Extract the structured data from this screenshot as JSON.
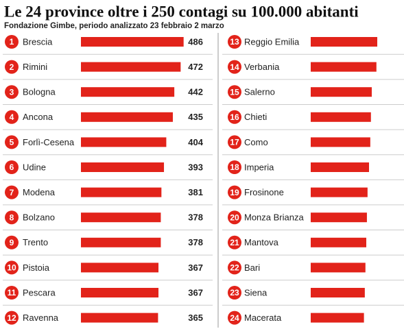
{
  "chart_data": [
    {
      "type": "bar",
      "title": "Le 24 province oltre i 250 contagi su 100.000 abitanti",
      "subtitle": "Fondazione Gimbe, periodo analizzato 23 febbraio 2 marzo",
      "ranks": [
        "1",
        "2",
        "3",
        "4",
        "5",
        "6",
        "7",
        "8",
        "9",
        "10",
        "11",
        "12"
      ],
      "categories": [
        "Brescia",
        "Rimini",
        "Bologna",
        "Ancona",
        "Forlì-Cesena",
        "Udine",
        "Modena",
        "Bolzano",
        "Trento",
        "Pistoia",
        "Pescara",
        "Ravenna"
      ],
      "values": [
        486,
        472,
        442,
        435,
        404,
        393,
        381,
        378,
        378,
        367,
        367,
        365
      ],
      "show_value_labels": true,
      "color": "#e2231a",
      "xlim": [
        0,
        500
      ]
    },
    {
      "type": "bar",
      "ranks": [
        "13",
        "14",
        "15",
        "16",
        "17",
        "18",
        "19",
        "20",
        "21",
        "22",
        "23",
        "24"
      ],
      "categories": [
        "Reggio Emilia",
        "Verbania",
        "Salerno",
        "Chieti",
        "Como",
        "Imperia",
        "Frosinone",
        "Monza Brianza",
        "Mantova",
        "Bari",
        "Siena",
        "Macerata"
      ],
      "values": [
        315,
        311,
        289,
        285,
        282,
        276,
        269,
        266,
        263,
        259,
        256,
        252
      ],
      "show_value_labels": false,
      "color": "#e2231a",
      "xlim": [
        0,
        500
      ]
    }
  ]
}
